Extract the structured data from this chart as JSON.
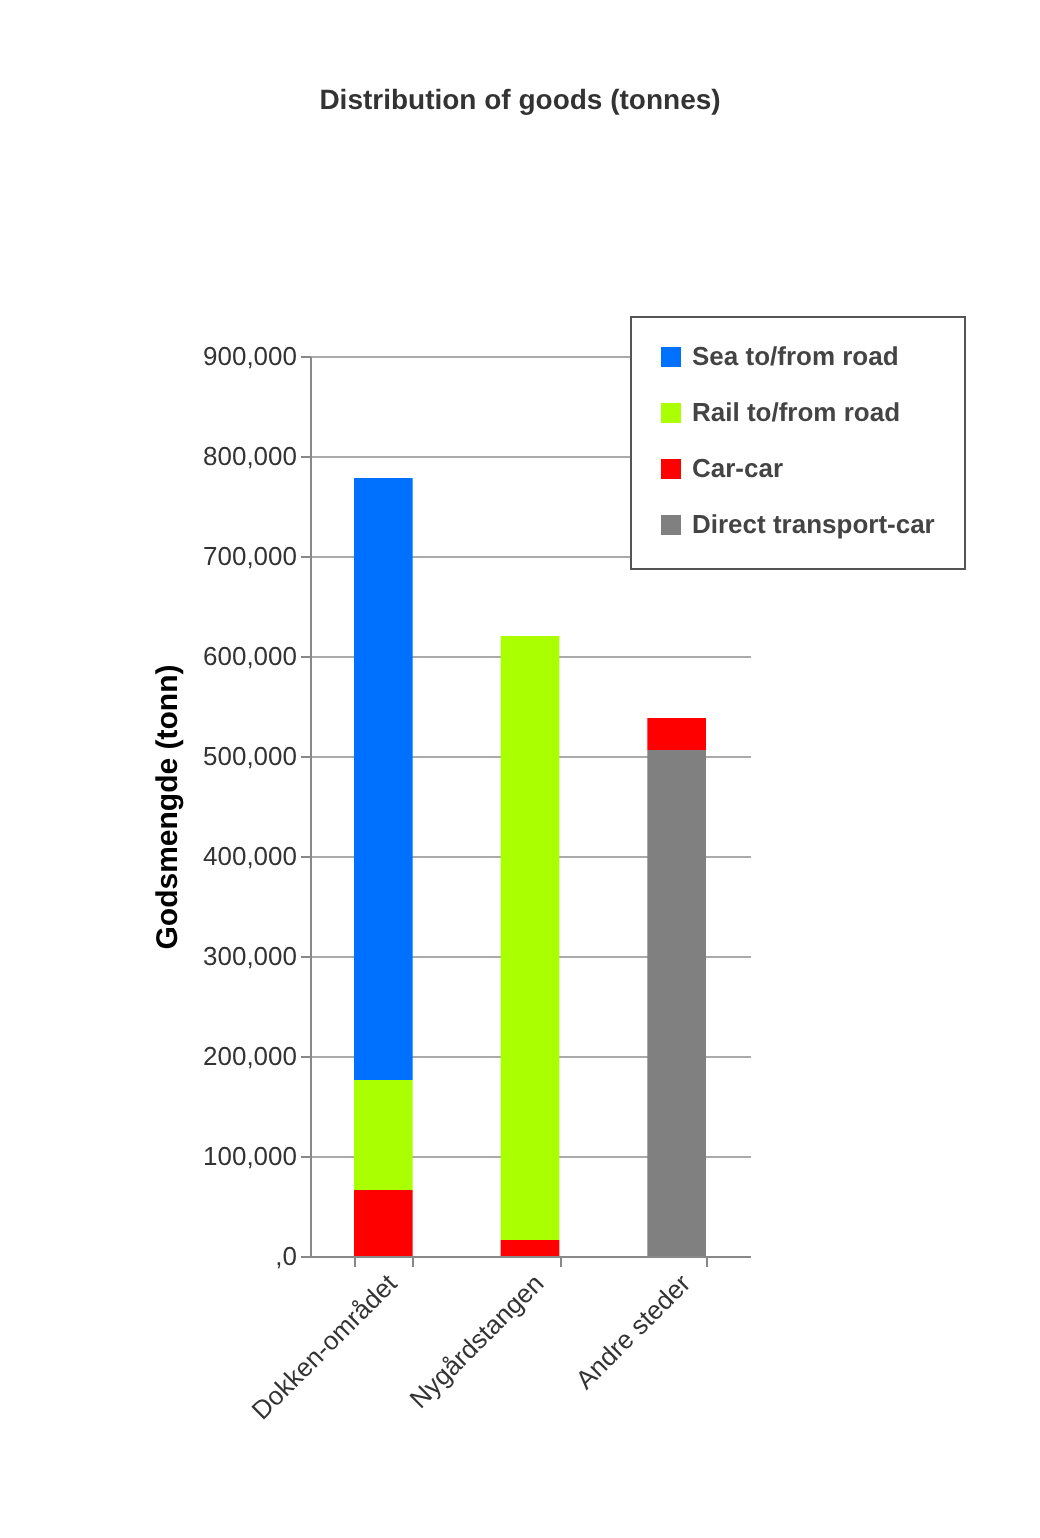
{
  "chart_data": {
    "type": "bar",
    "title": "Distribution of goods (tonnes)",
    "ylabel": "Godsmengde (tonn)",
    "categories": [
      "Dokken-området",
      "Nygårdstangen",
      "Andre steder"
    ],
    "stacked": true,
    "series": [
      {
        "name": "Direct transport-car",
        "color": "#808080",
        "values": [
          0,
          0,
          506000
        ]
      },
      {
        "name": "Car-car",
        "color": "#ff0000",
        "values": [
          66000,
          16000,
          32000
        ]
      },
      {
        "name": "Rail to/from road",
        "color": "#aaff00",
        "values": [
          110000,
          604000,
          0
        ]
      },
      {
        "name": "Sea to/from road",
        "color": "#0070ff",
        "values": [
          602000,
          0,
          0
        ]
      }
    ],
    "ylim": [
      0,
      900000
    ],
    "yticks": [
      {
        "value": 0,
        "label": ",0"
      },
      {
        "value": 100000,
        "label": "100,000"
      },
      {
        "value": 200000,
        "label": "200,000"
      },
      {
        "value": 300000,
        "label": "300,000"
      },
      {
        "value": 400000,
        "label": "400,000"
      },
      {
        "value": 500000,
        "label": "500,000"
      },
      {
        "value": 600000,
        "label": "600,000"
      },
      {
        "value": 700000,
        "label": "700,000"
      },
      {
        "value": 800000,
        "label": "800,000"
      },
      {
        "value": 900000,
        "label": "900,000"
      }
    ],
    "grid": "y",
    "legend": "top right"
  }
}
